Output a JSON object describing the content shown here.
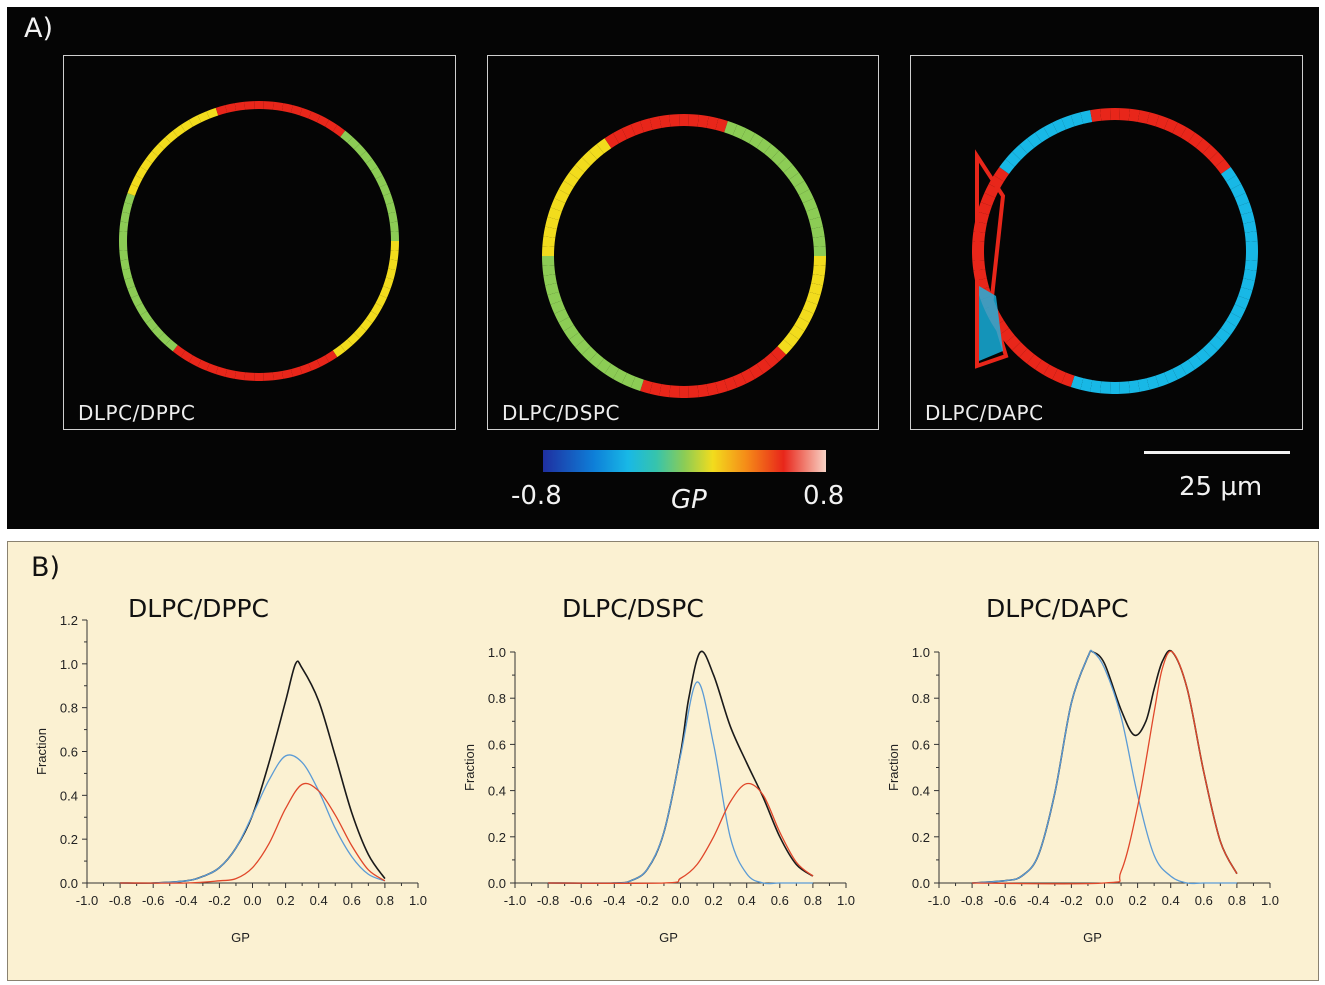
{
  "panel_a": {
    "letter": "A)",
    "images": [
      {
        "label": "DLPC/DPPC"
      },
      {
        "label": "DLPC/DSPC"
      },
      {
        "label": "DLPC/DAPC"
      }
    ],
    "colorbar": {
      "min_label": "-0.8",
      "mid_label": "GP",
      "max_label": "0.8",
      "colors": [
        "#1f2fa0",
        "#18b8e6",
        "#8ccc55",
        "#f2dc1d",
        "#e8261a",
        "#f8d3c5"
      ]
    },
    "scale_bar": {
      "label": "25 µm"
    }
  },
  "panel_b": {
    "letter": "B)"
  },
  "chart_data": [
    {
      "type": "line",
      "title": "DLPC/DPPC",
      "xlabel": "GP",
      "ylabel": "Fraction",
      "xlim": [
        -1.0,
        1.0
      ],
      "ylim": [
        0.0,
        1.2
      ],
      "xticks": [
        "-1.0",
        "-0.8",
        "-0.6",
        "-0.4",
        "-0.2",
        "0.0",
        "0.2",
        "0.4",
        "0.6",
        "0.8",
        "1.0"
      ],
      "yticks": [
        "0.0",
        "0.2",
        "0.4",
        "0.6",
        "0.8",
        "1.0",
        "1.2"
      ],
      "series": [
        {
          "color": "#1a1a1a",
          "x": [
            -0.8,
            -0.6,
            -0.4,
            -0.3,
            -0.2,
            -0.1,
            0.0,
            0.1,
            0.2,
            0.26,
            0.3,
            0.4,
            0.5,
            0.6,
            0.7,
            0.8
          ],
          "y": [
            0.0,
            0.0,
            0.01,
            0.03,
            0.07,
            0.16,
            0.31,
            0.55,
            0.83,
            1.0,
            0.98,
            0.83,
            0.58,
            0.32,
            0.13,
            0.02
          ]
        },
        {
          "color": "#5b9bd5",
          "x": [
            -0.8,
            -0.6,
            -0.4,
            -0.3,
            -0.2,
            -0.1,
            0.0,
            0.1,
            0.2,
            0.3,
            0.4,
            0.5,
            0.6,
            0.7,
            0.8
          ],
          "y": [
            0.0,
            0.0,
            0.01,
            0.03,
            0.07,
            0.16,
            0.31,
            0.47,
            0.58,
            0.55,
            0.42,
            0.25,
            0.12,
            0.04,
            0.01
          ]
        },
        {
          "color": "#e0472a",
          "x": [
            -0.8,
            -0.4,
            -0.2,
            -0.1,
            0.0,
            0.1,
            0.2,
            0.3,
            0.4,
            0.5,
            0.6,
            0.7,
            0.8
          ],
          "y": [
            0.0,
            0.0,
            0.01,
            0.02,
            0.07,
            0.18,
            0.34,
            0.45,
            0.42,
            0.31,
            0.17,
            0.06,
            0.01
          ]
        }
      ]
    },
    {
      "type": "line",
      "title": "DLPC/DSPC",
      "xlabel": "GP",
      "ylabel": "Fraction",
      "xlim": [
        -1.0,
        1.0
      ],
      "ylim": [
        0.0,
        1.0
      ],
      "xticks": [
        "-1.0",
        "-0.8",
        "-0.6",
        "-0.4",
        "-0.2",
        "0.0",
        "0.2",
        "0.4",
        "0.6",
        "0.8",
        "1.0"
      ],
      "yticks": [
        "0.0",
        "0.2",
        "0.4",
        "0.6",
        "0.8",
        "1.0"
      ],
      "series": [
        {
          "color": "#1a1a1a",
          "x": [
            -0.8,
            -0.4,
            -0.3,
            -0.2,
            -0.1,
            0.0,
            0.05,
            0.12,
            0.2,
            0.3,
            0.4,
            0.5,
            0.6,
            0.7,
            0.8
          ],
          "y": [
            0.0,
            0.0,
            0.01,
            0.06,
            0.22,
            0.56,
            0.8,
            1.0,
            0.9,
            0.68,
            0.52,
            0.37,
            0.2,
            0.08,
            0.03
          ]
        },
        {
          "color": "#5b9bd5",
          "x": [
            -0.8,
            -0.4,
            -0.3,
            -0.2,
            -0.1,
            0.0,
            0.1,
            0.2,
            0.3,
            0.4,
            0.5,
            0.6,
            0.8
          ],
          "y": [
            0.0,
            0.0,
            0.01,
            0.06,
            0.22,
            0.55,
            0.87,
            0.6,
            0.2,
            0.04,
            0.0,
            0.0,
            0.0
          ]
        },
        {
          "color": "#e0472a",
          "x": [
            -0.8,
            -0.1,
            0.0,
            0.1,
            0.2,
            0.3,
            0.4,
            0.5,
            0.6,
            0.7,
            0.8
          ],
          "y": [
            0.0,
            0.0,
            0.02,
            0.08,
            0.2,
            0.35,
            0.43,
            0.38,
            0.22,
            0.09,
            0.03
          ]
        }
      ]
    },
    {
      "type": "line",
      "title": "DLPC/DAPC",
      "xlabel": "GP",
      "ylabel": "Fraction",
      "xlim": [
        -1.0,
        1.0
      ],
      "ylim": [
        0.0,
        1.0
      ],
      "xticks": [
        "-1.0",
        "-0.8",
        "-0.6",
        "-0.4",
        "-0.2",
        "0.0",
        "0.2",
        "0.4",
        "0.6",
        "0.8",
        "1.0"
      ],
      "yticks": [
        "0.0",
        "0.2",
        "0.4",
        "0.6",
        "0.8",
        "1.0"
      ],
      "series": [
        {
          "color": "#1a1a1a",
          "x": [
            -0.8,
            -0.6,
            -0.5,
            -0.4,
            -0.3,
            -0.2,
            -0.1,
            -0.07,
            0.0,
            0.1,
            0.18,
            0.25,
            0.3,
            0.35,
            0.41,
            0.5,
            0.6,
            0.7,
            0.8
          ],
          "y": [
            0.0,
            0.01,
            0.03,
            0.12,
            0.39,
            0.78,
            0.98,
            1.0,
            0.95,
            0.75,
            0.64,
            0.7,
            0.84,
            0.96,
            1.0,
            0.84,
            0.48,
            0.18,
            0.04
          ]
        },
        {
          "color": "#5b9bd5",
          "x": [
            -0.8,
            -0.6,
            -0.5,
            -0.4,
            -0.3,
            -0.2,
            -0.1,
            -0.07,
            0.0,
            0.1,
            0.2,
            0.3,
            0.4,
            0.5,
            0.6,
            0.8
          ],
          "y": [
            0.0,
            0.01,
            0.03,
            0.12,
            0.39,
            0.78,
            0.98,
            1.0,
            0.93,
            0.72,
            0.38,
            0.12,
            0.03,
            0.0,
            0.0,
            0.0
          ]
        },
        {
          "color": "#e0472a",
          "x": [
            -0.8,
            0.0,
            0.1,
            0.2,
            0.3,
            0.35,
            0.41,
            0.5,
            0.6,
            0.7,
            0.8
          ],
          "y": [
            0.0,
            0.0,
            0.05,
            0.33,
            0.74,
            0.93,
            1.0,
            0.84,
            0.48,
            0.18,
            0.04
          ]
        }
      ]
    }
  ]
}
